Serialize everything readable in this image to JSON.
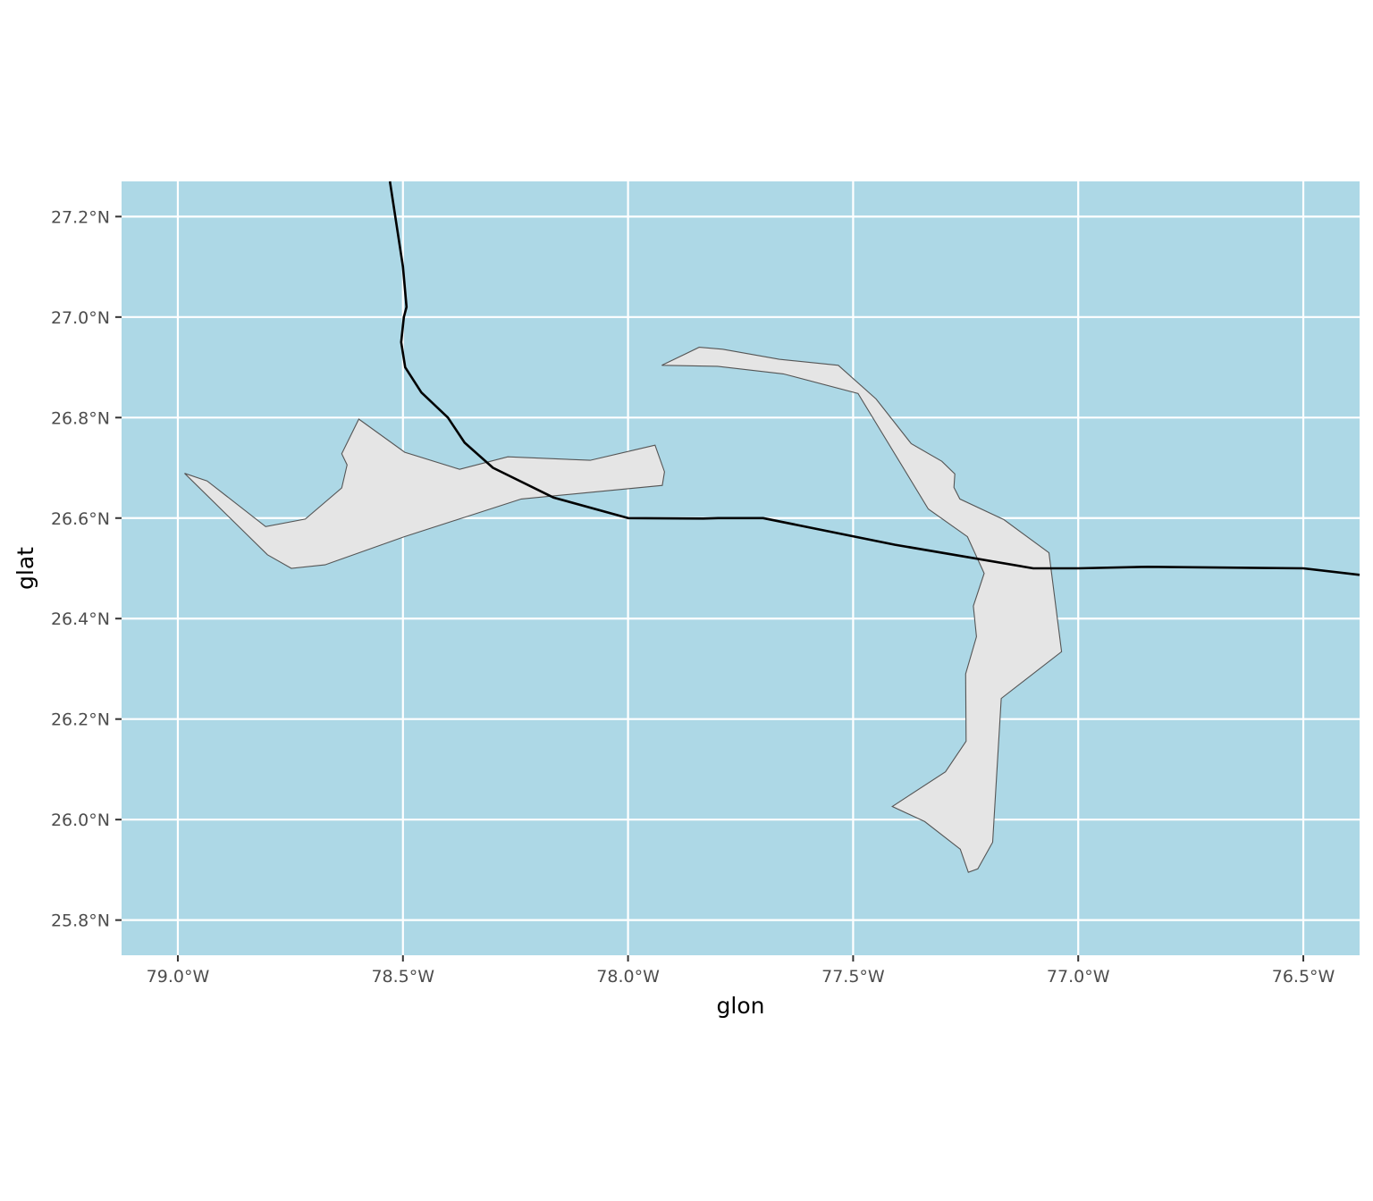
{
  "chart_data": {
    "type": "map",
    "xlabel": "glon",
    "ylabel": "glat",
    "xlim": [
      -79.125,
      -76.375
    ],
    "ylim": [
      25.73,
      27.27
    ],
    "x_ticks": [
      {
        "value": -79.0,
        "label": "79.0°W"
      },
      {
        "value": -78.5,
        "label": "78.5°W"
      },
      {
        "value": -78.0,
        "label": "78.0°W"
      },
      {
        "value": -77.5,
        "label": "77.5°W"
      },
      {
        "value": -77.0,
        "label": "77.0°W"
      },
      {
        "value": -76.5,
        "label": "76.5°W"
      }
    ],
    "y_ticks": [
      {
        "value": 25.8,
        "label": "25.8°N"
      },
      {
        "value": 26.0,
        "label": "26.0°N"
      },
      {
        "value": 26.2,
        "label": "26.2°N"
      },
      {
        "value": 26.4,
        "label": "26.4°N"
      },
      {
        "value": 26.6,
        "label": "26.6°N"
      },
      {
        "value": 26.8,
        "label": "26.8°N"
      },
      {
        "value": 27.0,
        "label": "27.0°N"
      },
      {
        "value": 27.2,
        "label": "27.2°N"
      }
    ],
    "grid": true,
    "colors": {
      "water": "#add8e6",
      "land": "#e5e5e5",
      "coastline": "#555555",
      "gridline": "#ffffff",
      "track": "#000000"
    },
    "islands": [
      {
        "name": "grand-bahama",
        "coords": [
          [
            -78.985,
            26.689
          ],
          [
            -78.935,
            26.674
          ],
          [
            -78.805,
            26.583
          ],
          [
            -78.717,
            26.598
          ],
          [
            -78.636,
            26.66
          ],
          [
            -78.624,
            26.706
          ],
          [
            -78.636,
            26.728
          ],
          [
            -78.598,
            26.797
          ],
          [
            -78.496,
            26.731
          ],
          [
            -78.374,
            26.697
          ],
          [
            -78.267,
            26.722
          ],
          [
            -78.084,
            26.715
          ],
          [
            -77.94,
            26.745
          ],
          [
            -77.919,
            26.692
          ],
          [
            -77.924,
            26.665
          ],
          [
            -78.237,
            26.638
          ],
          [
            -78.497,
            26.563
          ],
          [
            -78.673,
            26.507
          ],
          [
            -78.748,
            26.5
          ],
          [
            -78.801,
            26.527
          ],
          [
            -78.985,
            26.689
          ]
        ]
      },
      {
        "name": "abaco",
        "coords": [
          [
            -77.925,
            26.904
          ],
          [
            -77.842,
            26.94
          ],
          [
            -77.79,
            26.936
          ],
          [
            -77.664,
            26.916
          ],
          [
            -77.533,
            26.904
          ],
          [
            -77.449,
            26.837
          ],
          [
            -77.371,
            26.748
          ],
          [
            -77.303,
            26.713
          ],
          [
            -77.274,
            26.688
          ],
          [
            -77.276,
            26.661
          ],
          [
            -77.263,
            26.638
          ],
          [
            -77.165,
            26.597
          ],
          [
            -77.065,
            26.531
          ],
          [
            -77.037,
            26.334
          ],
          [
            -77.171,
            26.241
          ],
          [
            -77.19,
            25.955
          ],
          [
            -77.223,
            25.902
          ],
          [
            -77.244,
            25.895
          ],
          [
            -77.262,
            25.941
          ],
          [
            -77.341,
            25.996
          ],
          [
            -77.413,
            26.026
          ],
          [
            -77.295,
            26.095
          ],
          [
            -77.249,
            26.156
          ],
          [
            -77.25,
            26.29
          ],
          [
            -77.226,
            26.364
          ],
          [
            -77.233,
            26.425
          ],
          [
            -77.209,
            26.49
          ],
          [
            -77.246,
            26.563
          ],
          [
            -77.333,
            26.618
          ],
          [
            -77.489,
            26.848
          ],
          [
            -77.655,
            26.887
          ],
          [
            -77.801,
            26.902
          ],
          [
            -77.925,
            26.904
          ]
        ]
      }
    ],
    "track": [
      [
        -78.529,
        27.27
      ],
      [
        -78.5,
        27.1
      ],
      [
        -78.492,
        27.02
      ],
      [
        -78.498,
        27.0
      ],
      [
        -78.504,
        26.95
      ],
      [
        -78.495,
        26.9
      ],
      [
        -78.459,
        26.85
      ],
      [
        -78.4,
        26.8
      ],
      [
        -78.363,
        26.75
      ],
      [
        -78.3,
        26.7
      ],
      [
        -78.166,
        26.641
      ],
      [
        -78.0,
        26.6
      ],
      [
        -77.833,
        26.599
      ],
      [
        -77.8,
        26.6
      ],
      [
        -77.7,
        26.6
      ],
      [
        -77.407,
        26.547
      ],
      [
        -77.1,
        26.5
      ],
      [
        -77.0,
        26.5
      ],
      [
        -76.846,
        26.503
      ],
      [
        -76.5,
        26.5
      ],
      [
        -76.375,
        26.487
      ]
    ]
  }
}
